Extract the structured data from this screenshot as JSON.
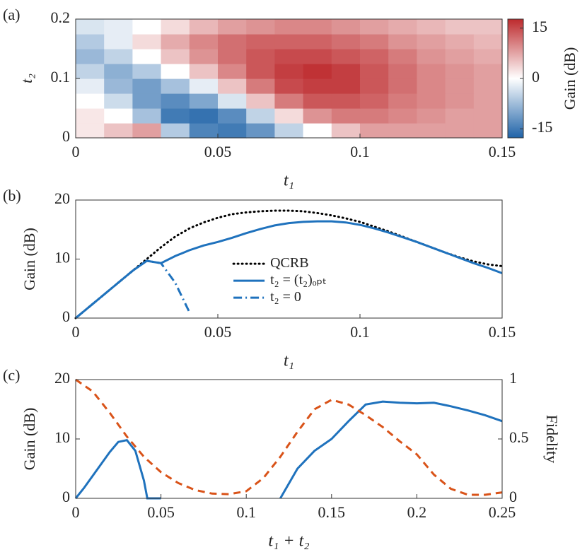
{
  "chart_data": [
    {
      "type": "heatmap",
      "label": "(a)",
      "xlabel": "t₁",
      "ylabel": "t₂",
      "x": [
        0.005,
        0.015,
        0.025,
        0.035,
        0.045,
        0.055,
        0.065,
        0.075,
        0.085,
        0.095,
        0.105,
        0.115,
        0.125,
        0.135,
        0.145
      ],
      "y": [
        0.0125,
        0.0375,
        0.0625,
        0.0875,
        0.1125,
        0.1375,
        0.1625,
        0.1875
      ],
      "z": [
        [
          2,
          5,
          8,
          -6,
          -14,
          -15,
          -12,
          -5,
          0,
          5,
          8,
          8,
          8,
          8,
          8
        ],
        [
          2,
          0,
          -7,
          -15,
          -16,
          -13,
          -5,
          3,
          9,
          11,
          11,
          10,
          9,
          8,
          8
        ],
        [
          0,
          -4,
          -11,
          -13,
          -10,
          -3,
          5,
          11,
          14,
          14,
          13,
          11,
          10,
          9,
          8
        ],
        [
          -2,
          -8,
          -11,
          -7,
          -2,
          5,
          11,
          15,
          16,
          16,
          14,
          12,
          10,
          9,
          8
        ],
        [
          -5,
          -9,
          -6,
          0,
          5,
          10,
          14,
          16,
          17,
          16,
          14,
          12,
          10,
          9,
          8
        ],
        [
          -8,
          -5,
          0,
          5,
          9,
          12,
          14,
          15,
          15,
          14,
          13,
          11,
          9,
          8,
          7
        ],
        [
          -6,
          -2,
          3,
          7,
          10,
          12,
          13,
          13,
          13,
          12,
          11,
          9,
          8,
          7,
          6
        ],
        [
          -3,
          -2,
          0,
          3,
          6,
          8,
          9,
          10,
          10,
          9,
          8,
          7,
          6,
          5,
          5
        ]
      ],
      "xlim": [
        0,
        0.15
      ],
      "ylim": [
        0,
        0.2
      ],
      "xticks": [
        0,
        0.05,
        0.1,
        0.15
      ],
      "yticks": [
        0,
        0.1,
        0.2
      ],
      "colorbar": {
        "label": "Gain (dB)",
        "clim": [
          -17.7,
          17.7
        ],
        "ticks": [
          -15,
          0,
          15
        ],
        "colormap": [
          "#1f63a8",
          "#ffffff",
          "#bd2a2d"
        ]
      }
    },
    {
      "type": "line",
      "label": "(b)",
      "xlabel": "t₁",
      "ylabel": "Gain (dB)",
      "x": [
        0,
        0.005,
        0.01,
        0.015,
        0.02,
        0.025,
        0.03,
        0.035,
        0.04,
        0.045,
        0.05,
        0.055,
        0.06,
        0.065,
        0.07,
        0.075,
        0.08,
        0.085,
        0.09,
        0.095,
        0.1,
        0.105,
        0.11,
        0.115,
        0.12,
        0.125,
        0.13,
        0.135,
        0.14,
        0.145,
        0.15
      ],
      "series": [
        {
          "name": "QCRB",
          "color": "#000000",
          "style": "dotted",
          "values": [
            0,
            2,
            4,
            6,
            8,
            10,
            12,
            13.8,
            15.2,
            16.2,
            17,
            17.6,
            17.9,
            18.1,
            18.2,
            18.2,
            18.1,
            17.8,
            17.4,
            16.9,
            16.3,
            15.5,
            14.7,
            13.8,
            12.9,
            12,
            11.1,
            10.3,
            9.6,
            9.1,
            8.8
          ]
        },
        {
          "name": "t₂ = (t₂)ₒₚₜ",
          "color": "#1f72bd",
          "style": "solid",
          "values": [
            0,
            2,
            4,
            6,
            8,
            9.7,
            9.3,
            10.5,
            11.5,
            12.3,
            12.9,
            13.6,
            14.4,
            15.1,
            15.7,
            16.1,
            16.3,
            16.4,
            16.4,
            16.2,
            15.8,
            15.2,
            14.5,
            13.7,
            12.9,
            12,
            11.1,
            10.2,
            9.3,
            8.5,
            7.6
          ]
        },
        {
          "name": "t₂ = 0",
          "color": "#1f72bd",
          "style": "dashdot",
          "values": [
            0,
            2,
            4,
            6,
            8,
            9.7,
            9.3,
            6,
            1,
            null,
            null,
            null,
            null,
            null,
            null,
            null,
            null,
            null,
            null,
            null,
            null,
            null,
            null,
            null,
            null,
            null,
            null,
            null,
            null,
            null,
            null
          ]
        }
      ],
      "xlim": [
        0,
        0.15
      ],
      "ylim": [
        0,
        20
      ],
      "xticks": [
        0,
        0.05,
        0.1,
        0.15
      ],
      "yticks": [
        0,
        10,
        20
      ],
      "legend": "center"
    },
    {
      "type": "line",
      "label": "(c)",
      "xlabel": "t₁ + t₂",
      "ylabel": "Gain (dB)",
      "y2label": "Fidelity",
      "series": [
        {
          "name": "Gain",
          "color": "#1f72bd",
          "style": "solid",
          "x": [
            0,
            0.005,
            0.01,
            0.015,
            0.02,
            0.025,
            0.03,
            0.035,
            0.04,
            0.042,
            0.05,
            0.118,
            0.12,
            0.13,
            0.14,
            0.15,
            0.16,
            0.17,
            0.18,
            0.19,
            0.2,
            0.21,
            0.22,
            0.23,
            0.24,
            0.25
          ],
          "values": [
            0,
            1.8,
            3.8,
            5.8,
            7.8,
            9.5,
            9.8,
            8,
            3,
            0,
            0,
            null,
            0,
            5,
            8,
            10,
            13,
            15.8,
            16.3,
            16.1,
            16,
            16.1,
            15.5,
            14.8,
            14,
            13
          ]
        },
        {
          "name": "Fidelity",
          "color": "#d95319",
          "style": "dashed",
          "axis": "y2",
          "x": [
            0,
            0.01,
            0.02,
            0.03,
            0.04,
            0.05,
            0.06,
            0.07,
            0.08,
            0.09,
            0.1,
            0.11,
            0.12,
            0.13,
            0.14,
            0.15,
            0.16,
            0.17,
            0.18,
            0.19,
            0.2,
            0.21,
            0.22,
            0.23,
            0.24,
            0.25
          ],
          "values": [
            1,
            0.9,
            0.72,
            0.52,
            0.35,
            0.22,
            0.13,
            0.07,
            0.04,
            0.035,
            0.06,
            0.17,
            0.35,
            0.56,
            0.75,
            0.83,
            0.79,
            0.7,
            0.6,
            0.48,
            0.37,
            0.2,
            0.08,
            0.03,
            0.03,
            0.05
          ]
        }
      ],
      "xlim": [
        0,
        0.25
      ],
      "ylim": [
        0,
        20
      ],
      "y2lim": [
        0,
        1
      ],
      "xticks": [
        0,
        0.05,
        0.1,
        0.15,
        0.2,
        0.25
      ],
      "yticks": [
        0,
        10,
        20
      ],
      "y2ticks": [
        0,
        0.5,
        1
      ]
    }
  ]
}
